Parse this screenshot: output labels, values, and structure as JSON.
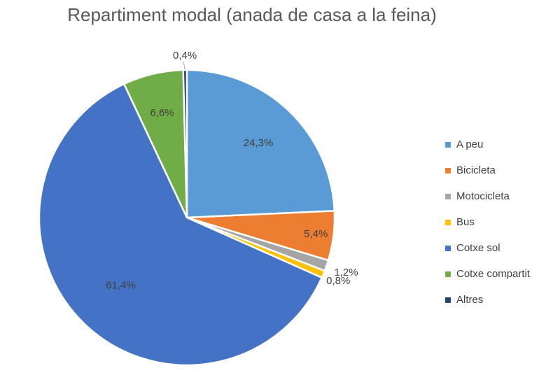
{
  "chart_data": {
    "type": "pie",
    "title": "Repartiment modal (anada de casa a la feina)",
    "categories": [
      "A peu",
      "Bicicleta",
      "Motocicleta",
      "Bus",
      "Cotxe sol",
      "Cotxe compartit",
      "Altres"
    ],
    "values": [
      24.3,
      5.4,
      1.2,
      0.8,
      61.4,
      6.6,
      0.4
    ],
    "labels": [
      "24,3%",
      "5,4%",
      "1,2%",
      "0,8%",
      "61,4%",
      "6,6%",
      "0,4%"
    ],
    "colors": [
      "#5B9BD5",
      "#ED7D31",
      "#A5A5A5",
      "#FFC000",
      "#4472C4",
      "#70AD47",
      "#264478"
    ],
    "start_angle_deg": 0,
    "direction": "clockwise",
    "legend_position": "right"
  }
}
